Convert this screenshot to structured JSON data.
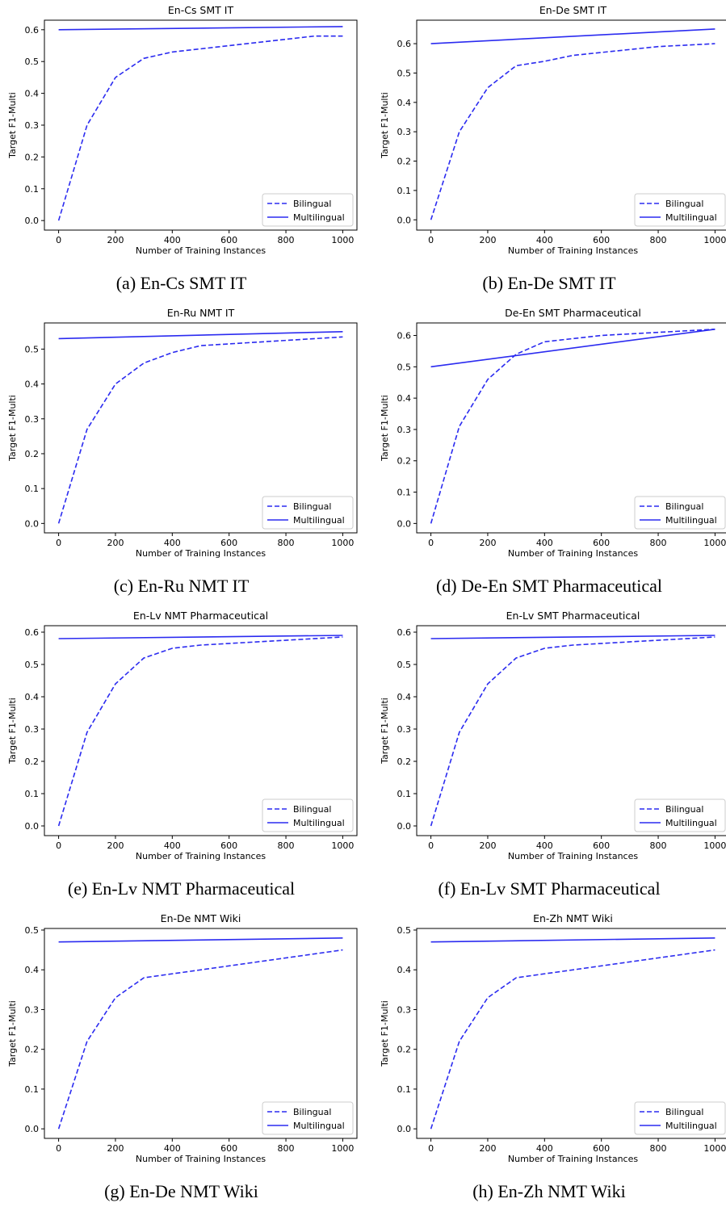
{
  "chart_data": [
    {
      "type": "line",
      "title": "En-Cs SMT IT",
      "caption": "(a) En-Cs SMT IT",
      "xlabel": "Number of Training Instances",
      "ylabel": "Target F1-Multi",
      "xlim": [
        -50,
        1050
      ],
      "ylim": [
        -0.03,
        0.63
      ],
      "xticks": [
        "0",
        "200",
        "400",
        "600",
        "800",
        "1000"
      ],
      "yticks": [
        "0.0",
        "0.1",
        "0.2",
        "0.3",
        "0.4",
        "0.5",
        "0.6"
      ],
      "legend_position": "lower-right",
      "grid": false,
      "series": [
        {
          "name": "Bilingual",
          "style": "dashed",
          "color": "#2b2bf0",
          "x": [
            0,
            100,
            200,
            300,
            400,
            500,
            900,
            1000
          ],
          "y": [
            0.0,
            0.3,
            0.45,
            0.51,
            0.53,
            0.54,
            0.58,
            0.58
          ]
        },
        {
          "name": "Multilingual",
          "style": "solid",
          "color": "#2b2bf0",
          "x": [
            0,
            1000
          ],
          "y": [
            0.6,
            0.61
          ]
        }
      ]
    },
    {
      "type": "line",
      "title": "En-De SMT IT",
      "caption": "(b) En-De SMT IT",
      "xlabel": "Number of Training Instances",
      "ylabel": "Target F1-Multi",
      "xlim": [
        -50,
        1050
      ],
      "ylim": [
        -0.035,
        0.68
      ],
      "xticks": [
        "0",
        "200",
        "400",
        "600",
        "800",
        "1000"
      ],
      "yticks": [
        "0.0",
        "0.1",
        "0.2",
        "0.3",
        "0.4",
        "0.5",
        "0.6"
      ],
      "legend_position": "lower-right",
      "grid": false,
      "series": [
        {
          "name": "Bilingual",
          "style": "dashed",
          "color": "#2b2bf0",
          "x": [
            0,
            100,
            200,
            300,
            400,
            500,
            800,
            1000
          ],
          "y": [
            0.0,
            0.3,
            0.45,
            0.525,
            0.54,
            0.56,
            0.59,
            0.6
          ]
        },
        {
          "name": "Multilingual",
          "style": "solid",
          "color": "#2b2bf0",
          "x": [
            0,
            1000
          ],
          "y": [
            0.6,
            0.65
          ]
        }
      ]
    },
    {
      "type": "line",
      "title": "En-Ru NMT IT",
      "caption": "(c) En-Ru NMT IT",
      "xlabel": "Number of Training Instances",
      "ylabel": "Target F1-Multi",
      "xlim": [
        -50,
        1050
      ],
      "ylim": [
        -0.027,
        0.575
      ],
      "xticks": [
        "0",
        "200",
        "400",
        "600",
        "800",
        "1000"
      ],
      "yticks": [
        "0.0",
        "0.1",
        "0.2",
        "0.3",
        "0.4",
        "0.5"
      ],
      "legend_position": "lower-right",
      "grid": false,
      "series": [
        {
          "name": "Bilingual",
          "style": "dashed",
          "color": "#2b2bf0",
          "x": [
            0,
            100,
            200,
            300,
            400,
            500,
            1000
          ],
          "y": [
            0.0,
            0.27,
            0.4,
            0.46,
            0.49,
            0.51,
            0.535
          ]
        },
        {
          "name": "Multilingual",
          "style": "solid",
          "color": "#2b2bf0",
          "x": [
            0,
            1000
          ],
          "y": [
            0.53,
            0.55
          ]
        }
      ]
    },
    {
      "type": "line",
      "title": "De-En SMT Pharmaceutical",
      "caption": "(d) De-En SMT Pharmaceutical",
      "xlabel": "Number of Training Instances",
      "ylabel": "Target F1-Multi",
      "xlim": [
        -50,
        1050
      ],
      "ylim": [
        -0.03,
        0.64
      ],
      "xticks": [
        "0",
        "200",
        "400",
        "600",
        "800",
        "1000"
      ],
      "yticks": [
        "0.0",
        "0.1",
        "0.2",
        "0.3",
        "0.4",
        "0.5",
        "0.6"
      ],
      "legend_position": "lower-right",
      "grid": false,
      "series": [
        {
          "name": "Bilingual",
          "style": "dashed",
          "color": "#2b2bf0",
          "x": [
            0,
            100,
            200,
            300,
            400,
            600,
            1000
          ],
          "y": [
            0.0,
            0.31,
            0.46,
            0.54,
            0.58,
            0.6,
            0.62
          ]
        },
        {
          "name": "Multilingual",
          "style": "solid",
          "color": "#2b2bf0",
          "x": [
            0,
            1000
          ],
          "y": [
            0.5,
            0.62
          ]
        }
      ]
    },
    {
      "type": "line",
      "title": "En-Lv NMT Pharmaceutical",
      "caption": "(e) En-Lv NMT Pharmaceutical",
      "xlabel": "Number of Training Instances",
      "ylabel": "Target F1-Multi",
      "xlim": [
        -50,
        1050
      ],
      "ylim": [
        -0.03,
        0.62
      ],
      "xticks": [
        "0",
        "200",
        "400",
        "600",
        "800",
        "1000"
      ],
      "yticks": [
        "0.0",
        "0.1",
        "0.2",
        "0.3",
        "0.4",
        "0.5",
        "0.6"
      ],
      "legend_position": "lower-right",
      "grid": false,
      "series": [
        {
          "name": "Bilingual",
          "style": "dashed",
          "color": "#2b2bf0",
          "x": [
            0,
            100,
            200,
            300,
            400,
            500,
            1000
          ],
          "y": [
            0.0,
            0.29,
            0.44,
            0.52,
            0.55,
            0.56,
            0.585
          ]
        },
        {
          "name": "Multilingual",
          "style": "solid",
          "color": "#2b2bf0",
          "x": [
            0,
            1000
          ],
          "y": [
            0.58,
            0.59
          ]
        }
      ]
    },
    {
      "type": "line",
      "title": "En-Lv SMT Pharmaceutical",
      "caption": "(f) En-Lv SMT Pharmaceutical",
      "xlabel": "Number of Training Instances",
      "ylabel": "Target F1-Multi",
      "xlim": [
        -50,
        1050
      ],
      "ylim": [
        -0.03,
        0.62
      ],
      "xticks": [
        "0",
        "200",
        "400",
        "600",
        "800",
        "1000"
      ],
      "yticks": [
        "0.0",
        "0.1",
        "0.2",
        "0.3",
        "0.4",
        "0.5",
        "0.6"
      ],
      "legend_position": "lower-right",
      "grid": false,
      "series": [
        {
          "name": "Bilingual",
          "style": "dashed",
          "color": "#2b2bf0",
          "x": [
            0,
            100,
            200,
            300,
            400,
            500,
            1000
          ],
          "y": [
            0.0,
            0.29,
            0.44,
            0.52,
            0.55,
            0.56,
            0.585
          ]
        },
        {
          "name": "Multilingual",
          "style": "solid",
          "color": "#2b2bf0",
          "x": [
            0,
            1000
          ],
          "y": [
            0.58,
            0.59
          ]
        }
      ]
    },
    {
      "type": "line",
      "title": "En-De NMT Wiki",
      "caption": "(g) En-De NMT Wiki",
      "xlabel": "Number of Training Instances",
      "ylabel": "Target F1-Multi",
      "xlim": [
        -50,
        1050
      ],
      "ylim": [
        -0.024,
        0.504
      ],
      "xticks": [
        "0",
        "200",
        "400",
        "600",
        "800",
        "1000"
      ],
      "yticks": [
        "0.0",
        "0.1",
        "0.2",
        "0.3",
        "0.4",
        "0.5"
      ],
      "legend_position": "lower-right",
      "grid": false,
      "series": [
        {
          "name": "Bilingual",
          "style": "dashed",
          "color": "#2b2bf0",
          "x": [
            0,
            100,
            200,
            300,
            1000
          ],
          "y": [
            0.0,
            0.22,
            0.33,
            0.38,
            0.45
          ]
        },
        {
          "name": "Multilingual",
          "style": "solid",
          "color": "#2b2bf0",
          "x": [
            0,
            1000
          ],
          "y": [
            0.47,
            0.48
          ]
        }
      ]
    },
    {
      "type": "line",
      "title": "En-Zh NMT Wiki",
      "caption": "(h) En-Zh NMT Wiki",
      "xlabel": "Number of Training Instances",
      "ylabel": "Target F1-Multi",
      "xlim": [
        -50,
        1050
      ],
      "ylim": [
        -0.024,
        0.504
      ],
      "xticks": [
        "0",
        "200",
        "400",
        "600",
        "800",
        "1000"
      ],
      "yticks": [
        "0.0",
        "0.1",
        "0.2",
        "0.3",
        "0.4",
        "0.5"
      ],
      "legend_position": "lower-right",
      "grid": false,
      "series": [
        {
          "name": "Bilingual",
          "style": "dashed",
          "color": "#2b2bf0",
          "x": [
            0,
            100,
            200,
            300,
            1000
          ],
          "y": [
            0.0,
            0.22,
            0.33,
            0.38,
            0.45
          ]
        },
        {
          "name": "Multilingual",
          "style": "solid",
          "color": "#2b2bf0",
          "x": [
            0,
            1000
          ],
          "y": [
            0.47,
            0.48
          ]
        }
      ]
    }
  ]
}
